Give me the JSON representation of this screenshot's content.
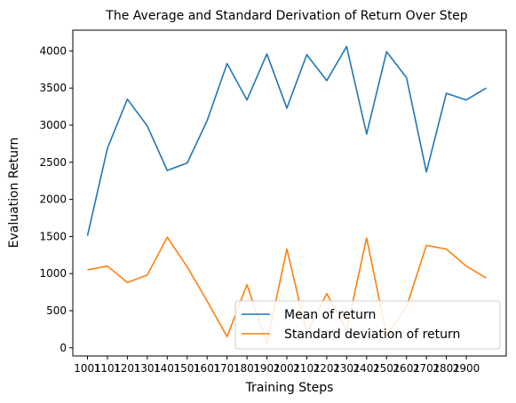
{
  "chart_data": {
    "type": "line",
    "title": "The Average and Standard Derivation of Return Over Step",
    "xlabel": "Training Steps",
    "ylabel": "Evaluation Return",
    "x_tick_labels": [
      "1001",
      "1101",
      "1201",
      "1301",
      "1401",
      "1501",
      "1601",
      "1701",
      "1801",
      "1901",
      "2001",
      "2101",
      "2201",
      "2301",
      "2401",
      "2501",
      "2601",
      "2701",
      "2801",
      "2900"
    ],
    "y_ticks": [
      0,
      500,
      1000,
      1500,
      2000,
      2500,
      3000,
      3500,
      4000
    ],
    "ylim": [
      -110,
      4280
    ],
    "grid": false,
    "legend_position": "lower-right",
    "series": [
      {
        "name": "Mean of return",
        "color": "#1f77b4",
        "values": [
          1510,
          2690,
          3350,
          2990,
          2390,
          2490,
          3060,
          3830,
          3340,
          3960,
          3230,
          3950,
          3600,
          4060,
          2880,
          3990,
          3640,
          2370,
          3430,
          3340,
          3500
        ]
      },
      {
        "name": "Standard deviation of return",
        "color": "#ff7f0e",
        "values": [
          1050,
          1100,
          880,
          980,
          1490,
          1090,
          630,
          150,
          850,
          60,
          1330,
          200,
          730,
          240,
          1480,
          170,
          550,
          1380,
          1330,
          1100,
          940
        ]
      }
    ]
  }
}
